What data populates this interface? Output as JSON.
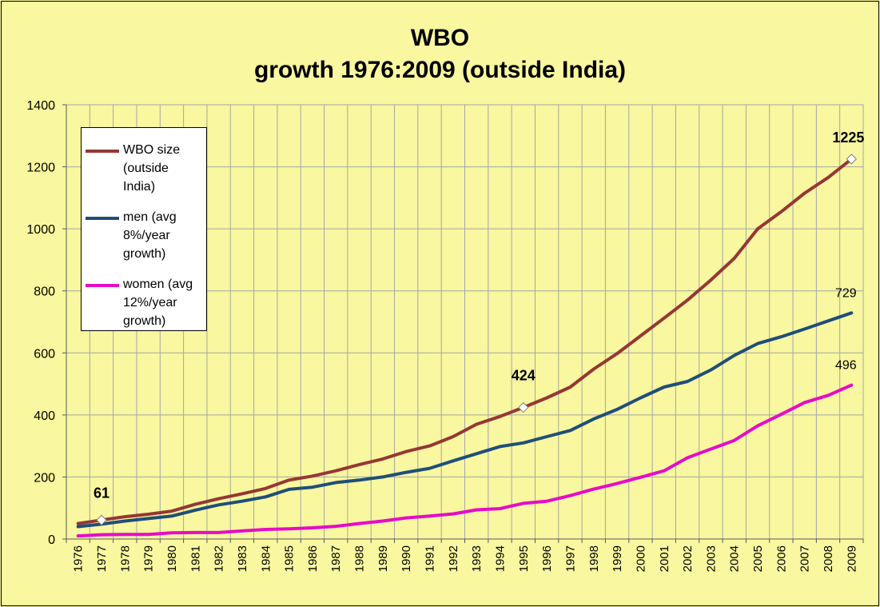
{
  "chart_data": {
    "type": "line",
    "title_line1": "WBO",
    "title_line2": "growth 1976:2009 (outside India)",
    "xlabel": "",
    "ylabel": "",
    "ylim": [
      0,
      1400
    ],
    "yticks": [
      "0",
      "200",
      "400",
      "600",
      "800",
      "1000",
      "1200",
      "1400"
    ],
    "grid": true,
    "legend_position": "top-left",
    "categories": [
      "1976",
      "1977",
      "1978",
      "1979",
      "1980",
      "1981",
      "1982",
      "1983",
      "1984",
      "1985",
      "1986",
      "1987",
      "1988",
      "1989",
      "1990",
      "1991",
      "1992",
      "1993",
      "1994",
      "1995",
      "1996",
      "1997",
      "1998",
      "1999",
      "2000",
      "2001",
      "2002",
      "2003",
      "2004",
      "2005",
      "2006",
      "2007",
      "2008",
      "2009"
    ],
    "series": [
      {
        "name": "WBO size (outside India)",
        "legend_lines": [
          "WBO size",
          "(outside",
          "India)"
        ],
        "color": "#953735",
        "values": [
          50,
          61,
          72,
          80,
          90,
          112,
          130,
          146,
          163,
          190,
          203,
          220,
          240,
          258,
          282,
          300,
          330,
          370,
          395,
          424,
          455,
          490,
          548,
          598,
          655,
          712,
          770,
          835,
          905,
          1000,
          1055,
          1115,
          1165,
          1225
        ]
      },
      {
        "name": "men (avg 8%/year growth)",
        "legend_lines": [
          "men (avg",
          "8%/year",
          "growth)"
        ],
        "color": "#1f4e79",
        "values": [
          40,
          48,
          58,
          66,
          74,
          93,
          110,
          122,
          136,
          160,
          167,
          182,
          190,
          200,
          215,
          228,
          252,
          275,
          298,
          310,
          330,
          350,
          387,
          418,
          455,
          490,
          508,
          545,
          592,
          630,
          652,
          677,
          703,
          729
        ]
      },
      {
        "name": "women (avg 12%/year growth)",
        "legend_lines": [
          "women (avg",
          "12%/year",
          "growth)"
        ],
        "color": "#e60cc8",
        "values": [
          10,
          14,
          15,
          15,
          20,
          21,
          21,
          26,
          31,
          33,
          36,
          41,
          50,
          58,
          68,
          74,
          81,
          94,
          98,
          115,
          122,
          140,
          161,
          179,
          199,
          220,
          262,
          290,
          318,
          365,
          402,
          440,
          463,
          496
        ]
      }
    ],
    "annotations": [
      {
        "text": "61",
        "category": "1977",
        "value": 61,
        "series": 0,
        "bold": true,
        "marker": true
      },
      {
        "text": "424",
        "category": "1995",
        "value": 424,
        "series": 0,
        "bold": true,
        "marker": true
      },
      {
        "text": "1225",
        "category": "2009",
        "value": 1225,
        "series": 0,
        "bold": true,
        "marker": true
      },
      {
        "text": "729",
        "category": "2009",
        "value": 729,
        "series": 1,
        "bold": false,
        "marker": false
      },
      {
        "text": "496",
        "category": "2009",
        "value": 496,
        "series": 2,
        "bold": false,
        "marker": false
      }
    ],
    "colors": {
      "background": "#f9f79f",
      "grid": "#a6a6a6",
      "legend_bg": "#ffffff"
    }
  }
}
